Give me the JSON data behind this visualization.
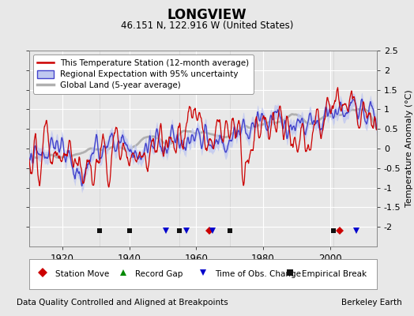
{
  "title": "LONGVIEW",
  "subtitle": "46.151 N, 122.916 W (United States)",
  "xlabel_note": "Data Quality Controlled and Aligned at Breakpoints",
  "credit": "Berkeley Earth",
  "ylabel": "Temperature Anomaly (°C)",
  "ylim": [
    -2.5,
    2.5
  ],
  "xlim": [
    1910,
    2014
  ],
  "xticks": [
    1920,
    1940,
    1960,
    1980,
    2000
  ],
  "yticks": [
    -2,
    -1.5,
    -1,
    -0.5,
    0,
    0.5,
    1,
    1.5,
    2,
    2.5
  ],
  "bg_color": "#e8e8e8",
  "plot_bg_color": "#e8e8e8",
  "station_color": "#cc0000",
  "regional_color": "#4444cc",
  "regional_fill_color": "#c0c8f0",
  "global_color": "#b0b0b0",
  "marker_events": {
    "empirical_breaks": [
      1931,
      1940,
      1955,
      1970,
      2001
    ],
    "station_moves": [
      1964,
      2003
    ],
    "time_of_obs_changes": [
      1951,
      1957,
      1965,
      2008
    ],
    "record_gaps": []
  },
  "legend_items": [
    {
      "label": "This Temperature Station (12-month average)",
      "color": "#cc0000",
      "lw": 1.5
    },
    {
      "label": "Regional Expectation with 95% uncertainty",
      "color": "#4444cc",
      "fill": "#c0c8f0",
      "lw": 1.5
    },
    {
      "label": "Global Land (5-year average)",
      "color": "#b0b0b0",
      "lw": 2.5
    }
  ],
  "bottom_legend_items": [
    {
      "marker": "D",
      "color": "#cc0000",
      "label": "Station Move"
    },
    {
      "marker": "^",
      "color": "#008800",
      "label": "Record Gap"
    },
    {
      "marker": "v",
      "color": "#0000cc",
      "label": "Time of Obs. Change"
    },
    {
      "marker": "s",
      "color": "#111111",
      "label": "Empirical Break"
    }
  ]
}
